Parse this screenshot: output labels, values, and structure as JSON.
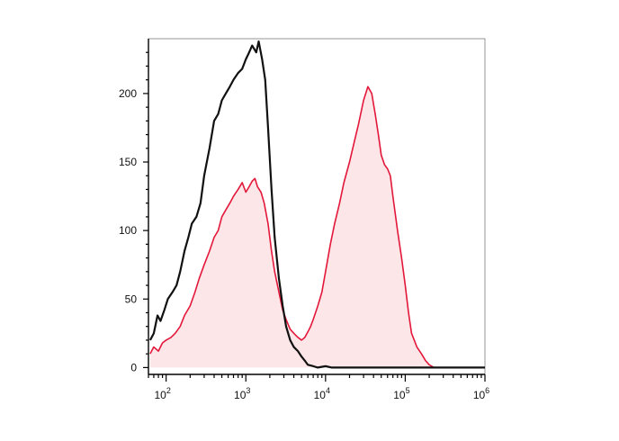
{
  "chart_data": {
    "type": "area",
    "title": "",
    "xlabel": "",
    "ylabel": "",
    "x_scale": "log",
    "xlim": [
      60,
      1000000
    ],
    "ylim": [
      -5,
      240
    ],
    "x_ticks": [
      {
        "value": 100,
        "base": "10",
        "exp": "2"
      },
      {
        "value": 1000,
        "base": "10",
        "exp": "3"
      },
      {
        "value": 10000,
        "base": "10",
        "exp": "4"
      },
      {
        "value": 100000,
        "base": "10",
        "exp": "5"
      },
      {
        "value": 1000000,
        "base": "10",
        "exp": "6"
      }
    ],
    "y_ticks": [
      {
        "value": 0,
        "label": "0"
      },
      {
        "value": 50,
        "label": "50"
      },
      {
        "value": 100,
        "label": "100"
      },
      {
        "value": 150,
        "label": "150"
      },
      {
        "value": 200,
        "label": "200"
      }
    ],
    "grid": false,
    "legend": "none",
    "series": [
      {
        "color": "#111111",
        "fill": "none",
        "points": [
          [
            63,
            20
          ],
          [
            70,
            25
          ],
          [
            78,
            38
          ],
          [
            85,
            34
          ],
          [
            95,
            42
          ],
          [
            105,
            50
          ],
          [
            120,
            55
          ],
          [
            135,
            60
          ],
          [
            150,
            70
          ],
          [
            170,
            85
          ],
          [
            190,
            95
          ],
          [
            210,
            105
          ],
          [
            240,
            110
          ],
          [
            270,
            120
          ],
          [
            300,
            140
          ],
          [
            350,
            160
          ],
          [
            400,
            180
          ],
          [
            450,
            185
          ],
          [
            500,
            195
          ],
          [
            560,
            200
          ],
          [
            630,
            205
          ],
          [
            700,
            210
          ],
          [
            800,
            215
          ],
          [
            900,
            218
          ],
          [
            1000,
            225
          ],
          [
            1100,
            230
          ],
          [
            1200,
            235
          ],
          [
            1350,
            230
          ],
          [
            1450,
            238
          ],
          [
            1600,
            225
          ],
          [
            1750,
            210
          ],
          [
            1900,
            175
          ],
          [
            2100,
            130
          ],
          [
            2300,
            95
          ],
          [
            2600,
            65
          ],
          [
            2900,
            45
          ],
          [
            3200,
            30
          ],
          [
            3600,
            20
          ],
          [
            4000,
            15
          ],
          [
            4500,
            12
          ],
          [
            5000,
            8
          ],
          [
            5500,
            5
          ],
          [
            6000,
            2
          ],
          [
            7000,
            1
          ],
          [
            8000,
            0
          ],
          [
            10000,
            1
          ],
          [
            12000,
            0
          ],
          [
            1000000,
            0
          ]
        ]
      },
      {
        "color": "#e3173a",
        "fill": "#fde6e8",
        "points": [
          [
            63,
            10
          ],
          [
            70,
            15
          ],
          [
            80,
            12
          ],
          [
            90,
            18
          ],
          [
            100,
            20
          ],
          [
            115,
            22
          ],
          [
            130,
            25
          ],
          [
            150,
            30
          ],
          [
            170,
            38
          ],
          [
            200,
            45
          ],
          [
            230,
            55
          ],
          [
            260,
            65
          ],
          [
            300,
            75
          ],
          [
            350,
            85
          ],
          [
            400,
            95
          ],
          [
            450,
            100
          ],
          [
            500,
            110
          ],
          [
            560,
            115
          ],
          [
            630,
            120
          ],
          [
            700,
            125
          ],
          [
            800,
            130
          ],
          [
            900,
            135
          ],
          [
            1000,
            128
          ],
          [
            1100,
            132
          ],
          [
            1200,
            136
          ],
          [
            1300,
            138
          ],
          [
            1400,
            132
          ],
          [
            1550,
            128
          ],
          [
            1700,
            120
          ],
          [
            1900,
            105
          ],
          [
            2100,
            85
          ],
          [
            2300,
            70
          ],
          [
            2600,
            55
          ],
          [
            2900,
            42
          ],
          [
            3200,
            35
          ],
          [
            3600,
            28
          ],
          [
            4000,
            25
          ],
          [
            4500,
            22
          ],
          [
            5000,
            20
          ],
          [
            5500,
            22
          ],
          [
            6000,
            26
          ],
          [
            6500,
            30
          ],
          [
            7000,
            35
          ],
          [
            8000,
            45
          ],
          [
            9000,
            55
          ],
          [
            10000,
            70
          ],
          [
            11500,
            90
          ],
          [
            13000,
            105
          ],
          [
            15000,
            120
          ],
          [
            17000,
            135
          ],
          [
            20000,
            150
          ],
          [
            23000,
            165
          ],
          [
            26000,
            178
          ],
          [
            30000,
            195
          ],
          [
            34000,
            205
          ],
          [
            38000,
            200
          ],
          [
            42000,
            185
          ],
          [
            46000,
            170
          ],
          [
            50000,
            155
          ],
          [
            55000,
            148
          ],
          [
            60000,
            145
          ],
          [
            65000,
            140
          ],
          [
            70000,
            125
          ],
          [
            80000,
            100
          ],
          [
            90000,
            80
          ],
          [
            100000,
            60
          ],
          [
            110000,
            40
          ],
          [
            120000,
            25
          ],
          [
            140000,
            15
          ],
          [
            160000,
            10
          ],
          [
            180000,
            5
          ],
          [
            200000,
            2
          ],
          [
            230000,
            0
          ],
          [
            1000000,
            0
          ]
        ]
      }
    ]
  }
}
